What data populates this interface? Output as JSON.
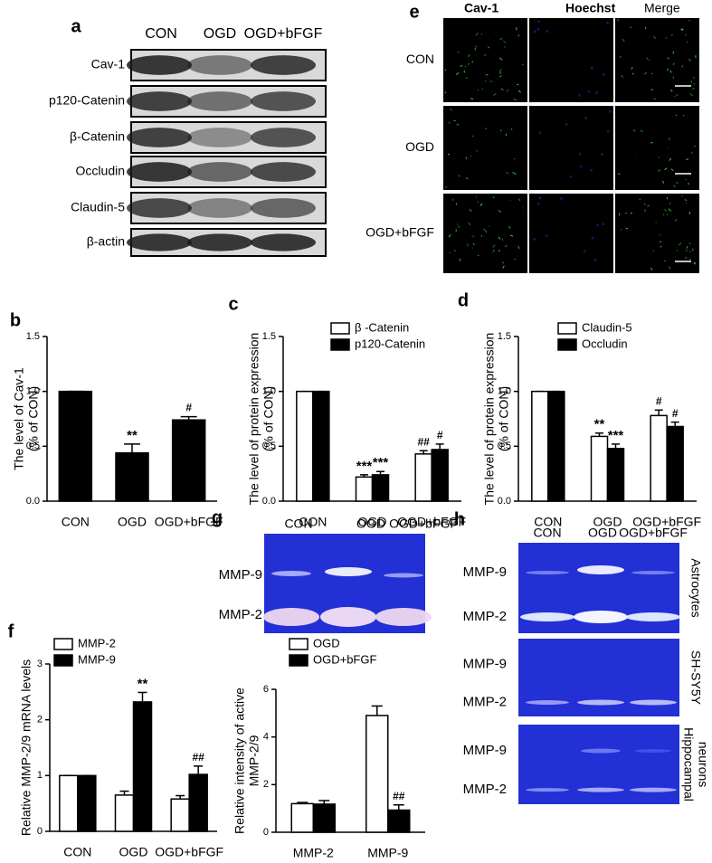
{
  "panel_a": {
    "letter": "a",
    "columns": [
      "CON",
      "OGD",
      "OGD+bFGF"
    ],
    "rows": [
      "Cav-1",
      "p120-Catenin",
      "β-Catenin",
      "Occludin",
      "Claudin-5",
      "β-actin"
    ]
  },
  "panel_e": {
    "letter": "e",
    "columns": [
      "Cav-1",
      "Hoechst",
      "Merge"
    ],
    "rows": [
      "CON",
      "OGD",
      "OGD+bFGF"
    ]
  },
  "panel_g_gel": {
    "columns": [
      "CON",
      "OGD",
      "OGD+bFGF"
    ],
    "rows": [
      "MMP-9",
      "MMP-2"
    ]
  },
  "panel_h": {
    "letter": "h",
    "columns": [
      "CON",
      "OGD",
      "OGD+bFGF"
    ],
    "gels": [
      {
        "rows": [
          "MMP-9",
          "MMP-2"
        ],
        "label": [
          "Astrocytes"
        ]
      },
      {
        "rows": [
          "MMP-9",
          "MMP-2"
        ],
        "label": [
          "SH-SY5Y"
        ]
      },
      {
        "rows": [
          "MMP-9",
          "MMP-2"
        ],
        "label": [
          "Hippocampal",
          "neurons"
        ]
      }
    ]
  },
  "chart_data": [
    {
      "type": "bar",
      "panel": "b",
      "ylabel": [
        "The level of Cav-1",
        "(% of CON)"
      ],
      "categories": [
        "CON",
        "OGD",
        "OGD+bFGF"
      ],
      "series": [
        {
          "color": "#000000",
          "values": [
            1.0,
            0.44,
            0.74
          ],
          "errors": [
            0,
            0.08,
            0.03
          ],
          "annotations": [
            null,
            "**",
            "#"
          ]
        }
      ],
      "ylim": [
        0,
        1.5
      ],
      "yticks": [
        {
          "value": 0,
          "label": "0.0"
        },
        {
          "value": 0.5,
          "label": "0.5"
        },
        {
          "value": 1,
          "label": "1.0"
        },
        {
          "value": 1.5,
          "label": "1.5"
        }
      ]
    },
    {
      "type": "bar",
      "panel": "c",
      "ylabel": [
        "The level of protein expression",
        "(% of CON)"
      ],
      "categories": [
        "CON",
        "OGD",
        "OGD+bFGF"
      ],
      "series": [
        {
          "name": "β -Catenin",
          "color": "#ffffff",
          "values": [
            1.0,
            0.22,
            0.43
          ],
          "errors": [
            0,
            0.02,
            0.03
          ],
          "annotations": [
            null,
            "***",
            "##"
          ]
        },
        {
          "name": "p120-Catenin",
          "color": "#000000",
          "values": [
            1.0,
            0.24,
            0.47
          ],
          "errors": [
            0,
            0.03,
            0.05
          ],
          "annotations": [
            null,
            "***",
            "#"
          ]
        }
      ],
      "ylim": [
        0,
        1.5
      ],
      "yticks": [
        {
          "value": 0,
          "label": "0.0"
        },
        {
          "value": 0.5,
          "label": "0.5"
        },
        {
          "value": 1,
          "label": "1.0"
        },
        {
          "value": 1.5,
          "label": "1.5"
        }
      ],
      "legend": "upper-left"
    },
    {
      "type": "bar",
      "panel": "d",
      "ylabel": [
        "The level of protein expression",
        "(% of CON)"
      ],
      "categories": [
        "CON",
        "OGD",
        "OGD+bFGF"
      ],
      "series": [
        {
          "name": "Claudin-5",
          "color": "#ffffff",
          "values": [
            1.0,
            0.59,
            0.78
          ],
          "errors": [
            0,
            0.03,
            0.05
          ],
          "annotations": [
            null,
            "**",
            "#"
          ]
        },
        {
          "name": "Occludin",
          "color": "#000000",
          "values": [
            1.0,
            0.48,
            0.68
          ],
          "errors": [
            0,
            0.04,
            0.04
          ],
          "annotations": [
            null,
            "***",
            "#"
          ]
        }
      ],
      "ylim": [
        0,
        1.5
      ],
      "yticks": [
        {
          "value": 0,
          "label": "0.0"
        },
        {
          "value": 0.5,
          "label": "0.5"
        },
        {
          "value": 1,
          "label": "1.0"
        },
        {
          "value": 1.5,
          "label": "1.5"
        }
      ],
      "legend": "upper-left"
    },
    {
      "type": "bar",
      "panel": "f",
      "ylabel": [
        "Relative MMP-2/9 mRNA levels"
      ],
      "categories": [
        "CON",
        "OGD",
        "OGD+bFGF"
      ],
      "series": [
        {
          "name": "MMP-2",
          "color": "#ffffff",
          "values": [
            1.0,
            0.65,
            0.58
          ],
          "errors": [
            0,
            0.07,
            0.06
          ],
          "annotations": [
            null,
            null,
            null
          ]
        },
        {
          "name": "MMP-9",
          "color": "#000000",
          "values": [
            1.0,
            2.32,
            1.02
          ],
          "errors": [
            0,
            0.17,
            0.15
          ],
          "annotations": [
            null,
            "**",
            "##"
          ]
        }
      ],
      "ylim": [
        0,
        3
      ],
      "yticks": [
        0,
        1,
        2,
        3
      ],
      "legend": "upper-left"
    },
    {
      "type": "bar",
      "panel": "g",
      "ylabel": [
        "Relative intensity of active",
        "MMP-2/9"
      ],
      "categories": [
        "MMP-2",
        "MMP-9"
      ],
      "series": [
        {
          "name": "OGD",
          "color": "#ffffff",
          "values": [
            1.2,
            4.9
          ],
          "errors": [
            0.05,
            0.4
          ],
          "annotations": [
            null,
            null
          ]
        },
        {
          "name": "OGD+bFGF",
          "color": "#000000",
          "values": [
            1.18,
            0.93
          ],
          "errors": [
            0.15,
            0.22
          ],
          "annotations": [
            null,
            "##"
          ]
        }
      ],
      "ylim": [
        0,
        6
      ],
      "yticks": [
        0,
        2,
        4,
        6
      ],
      "legend": "upper-left"
    }
  ]
}
